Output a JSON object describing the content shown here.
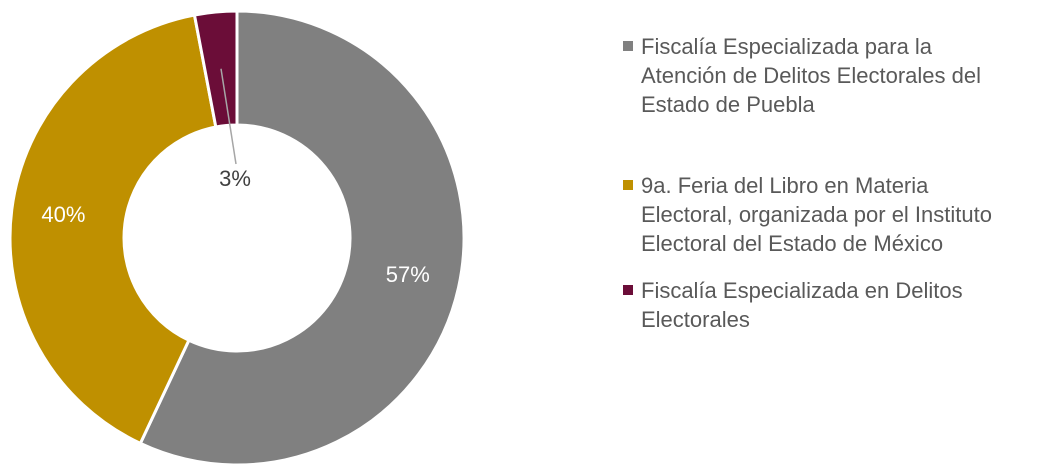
{
  "chart_data": {
    "type": "donut",
    "categories": [
      "Fiscalía Especializada para la Atención de Delitos Electorales del Estado de Puebla",
      "9a. Feria del Libro en Materia Electoral, organizada por el Instituto Electoral del Estado de México",
      "Fiscalía Especializada en Delitos Electorales"
    ],
    "values": [
      57,
      40,
      3
    ],
    "value_labels": [
      "57%",
      "40%",
      "3%"
    ],
    "colors": [
      "#808080",
      "#bf9000",
      "#6b0d38"
    ],
    "legend": "right"
  }
}
